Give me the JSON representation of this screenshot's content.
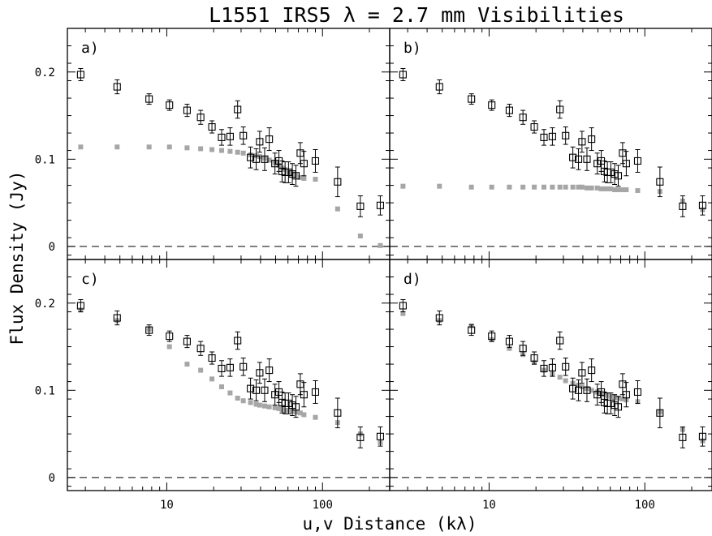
{
  "chart_data": {
    "type": "scatter",
    "title": "L1551 IRS5 λ = 2.7 mm Visibilities",
    "xlabel": "u,v Distance (kλ)",
    "ylabel": "Flux Density (Jy)",
    "xscale": "log",
    "xlim": [
      2.3,
      270
    ],
    "ylim": [
      -0.015,
      0.25
    ],
    "xticks": [
      10,
      100
    ],
    "xtick_labels": [
      "10",
      "100"
    ],
    "yticks": [
      0,
      0.1,
      0.2
    ],
    "ytick_labels": [
      "0",
      "0.1",
      "0.2"
    ],
    "grid": false,
    "layout": "2x2 panels sharing axes",
    "colors": {
      "observed": "#000000",
      "model": "#a6a6a6",
      "zero_line": "#000000"
    },
    "observed": {
      "marker": "open-square-with-error-bars",
      "x": [
        2.8,
        4.8,
        7.7,
        10.4,
        13.5,
        16.5,
        19.5,
        22.5,
        25.5,
        28.5,
        31.0,
        34.5,
        37.5,
        39.5,
        42.5,
        45.5,
        49.5,
        52.5,
        55.0,
        57.5,
        60.5,
        64.0,
        67.5,
        72.0,
        76.0,
        90.0,
        125.0,
        175.0,
        235.0
      ],
      "y": [
        0.197,
        0.183,
        0.169,
        0.162,
        0.156,
        0.148,
        0.137,
        0.125,
        0.126,
        0.157,
        0.127,
        0.102,
        0.1,
        0.12,
        0.1,
        0.123,
        0.095,
        0.098,
        0.086,
        0.085,
        0.085,
        0.083,
        0.081,
        0.107,
        0.095,
        0.098,
        0.074,
        0.046,
        0.047
      ],
      "err": [
        0.007,
        0.008,
        0.006,
        0.006,
        0.007,
        0.008,
        0.007,
        0.009,
        0.01,
        0.01,
        0.01,
        0.012,
        0.012,
        0.012,
        0.013,
        0.013,
        0.012,
        0.012,
        0.012,
        0.012,
        0.012,
        0.012,
        0.012,
        0.012,
        0.014,
        0.013,
        0.017,
        0.012,
        0.011
      ]
    },
    "panels": [
      {
        "label": "a)",
        "model": {
          "marker": "filled-square",
          "x": [
            2.8,
            4.8,
            7.7,
            10.4,
            13.5,
            16.5,
            19.5,
            22.5,
            25.5,
            28.5,
            31.0,
            34.5,
            37.5,
            39.5,
            42.5,
            45.5,
            49.5,
            52.5,
            55.0,
            57.5,
            60.5,
            64.0,
            67.5,
            72.0,
            76.0,
            90.0,
            125.0,
            175.0,
            235.0
          ],
          "y": [
            0.114,
            0.114,
            0.114,
            0.114,
            0.113,
            0.112,
            0.111,
            0.11,
            0.109,
            0.108,
            0.107,
            0.105,
            0.104,
            0.103,
            0.101,
            0.099,
            0.096,
            0.093,
            0.09,
            0.088,
            0.085,
            0.083,
            0.081,
            0.079,
            0.078,
            0.077,
            0.043,
            0.012,
            0.001
          ]
        }
      },
      {
        "label": "b)",
        "model": {
          "marker": "filled-square",
          "x": [
            2.8,
            4.8,
            7.7,
            10.4,
            13.5,
            16.5,
            19.5,
            22.5,
            25.5,
            28.5,
            31.0,
            34.5,
            37.5,
            39.5,
            42.5,
            45.5,
            49.5,
            52.5,
            55.0,
            57.5,
            60.5,
            64.0,
            67.5,
            72.0,
            76.0,
            90.0,
            125.0,
            175.0,
            235.0
          ],
          "y": [
            0.069,
            0.069,
            0.068,
            0.068,
            0.068,
            0.068,
            0.068,
            0.068,
            0.068,
            0.068,
            0.068,
            0.068,
            0.068,
            0.068,
            0.067,
            0.067,
            0.067,
            0.066,
            0.066,
            0.066,
            0.066,
            0.065,
            0.065,
            0.065,
            0.065,
            0.064,
            0.063,
            0.052,
            0.042
          ]
        }
      },
      {
        "label": "c)",
        "model": {
          "marker": "filled-square",
          "x": [
            2.8,
            4.8,
            7.7,
            10.4,
            13.5,
            16.5,
            19.5,
            22.5,
            25.5,
            28.5,
            31.0,
            34.5,
            37.5,
            39.5,
            42.5,
            45.5,
            49.5,
            52.5,
            55.0,
            57.5,
            60.5,
            64.0,
            67.5,
            72.0,
            76.0,
            90.0,
            125.0,
            175.0,
            235.0
          ],
          "y": [
            0.192,
            0.18,
            0.17,
            0.15,
            0.13,
            0.123,
            0.113,
            0.104,
            0.097,
            0.091,
            0.088,
            0.086,
            0.084,
            0.083,
            0.082,
            0.081,
            0.08,
            0.079,
            0.078,
            0.077,
            0.077,
            0.076,
            0.075,
            0.074,
            0.072,
            0.069,
            0.063,
            0.05,
            0.04
          ]
        }
      },
      {
        "label": "d)",
        "model": {
          "marker": "filled-square",
          "x": [
            2.8,
            4.8,
            7.7,
            10.4,
            13.5,
            16.5,
            19.5,
            22.5,
            25.5,
            28.5,
            31.0,
            34.5,
            37.5,
            39.5,
            42.5,
            45.5,
            49.5,
            52.5,
            55.0,
            57.5,
            60.5,
            64.0,
            67.5,
            72.0,
            76.0,
            90.0,
            125.0,
            175.0,
            235.0
          ],
          "y": [
            0.188,
            0.18,
            0.174,
            0.158,
            0.148,
            0.141,
            0.132,
            0.123,
            0.119,
            0.115,
            0.111,
            0.108,
            0.106,
            0.104,
            0.102,
            0.1,
            0.098,
            0.097,
            0.095,
            0.094,
            0.093,
            0.092,
            0.091,
            0.09,
            0.089,
            0.087,
            0.075,
            0.055,
            0.042
          ]
        }
      }
    ]
  }
}
